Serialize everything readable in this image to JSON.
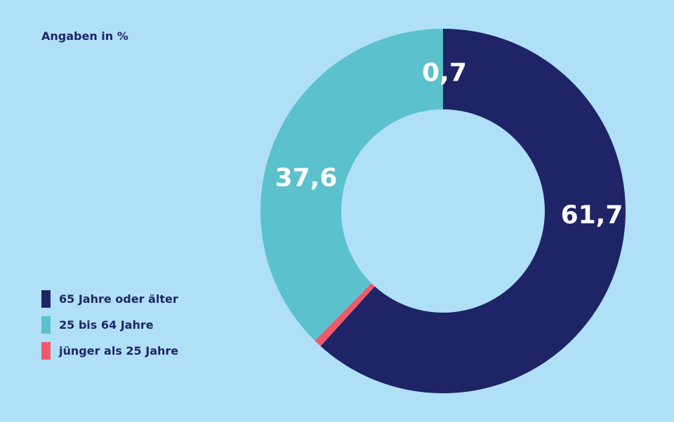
{
  "unit_note": "Angaben in %",
  "chart_data": {
    "type": "pie",
    "variant": "donut",
    "title": "",
    "unit": "%",
    "start_angle_deg": 0,
    "direction": "clockwise",
    "slices": [
      {
        "label": "65 Jahre oder älter",
        "value": 61.7,
        "display": "61,7",
        "color": "#1f2466"
      },
      {
        "label": "jünger als 25 Jahre",
        "value": 0.7,
        "display": "0,7",
        "color": "#ee5a6a"
      },
      {
        "label": "25 bis 64 Jahre",
        "value": 37.6,
        "display": "37,6",
        "color": "#5bc1cc"
      }
    ],
    "legend": {
      "placement": "bottom-left",
      "entries": [
        {
          "label": "65 Jahre oder älter",
          "color": "#1f2466"
        },
        {
          "label": "25 bis 64 Jahre",
          "color": "#5bc1cc"
        },
        {
          "label": "jünger als 25 Jahre",
          "color": "#ee5a6a"
        }
      ]
    }
  }
}
